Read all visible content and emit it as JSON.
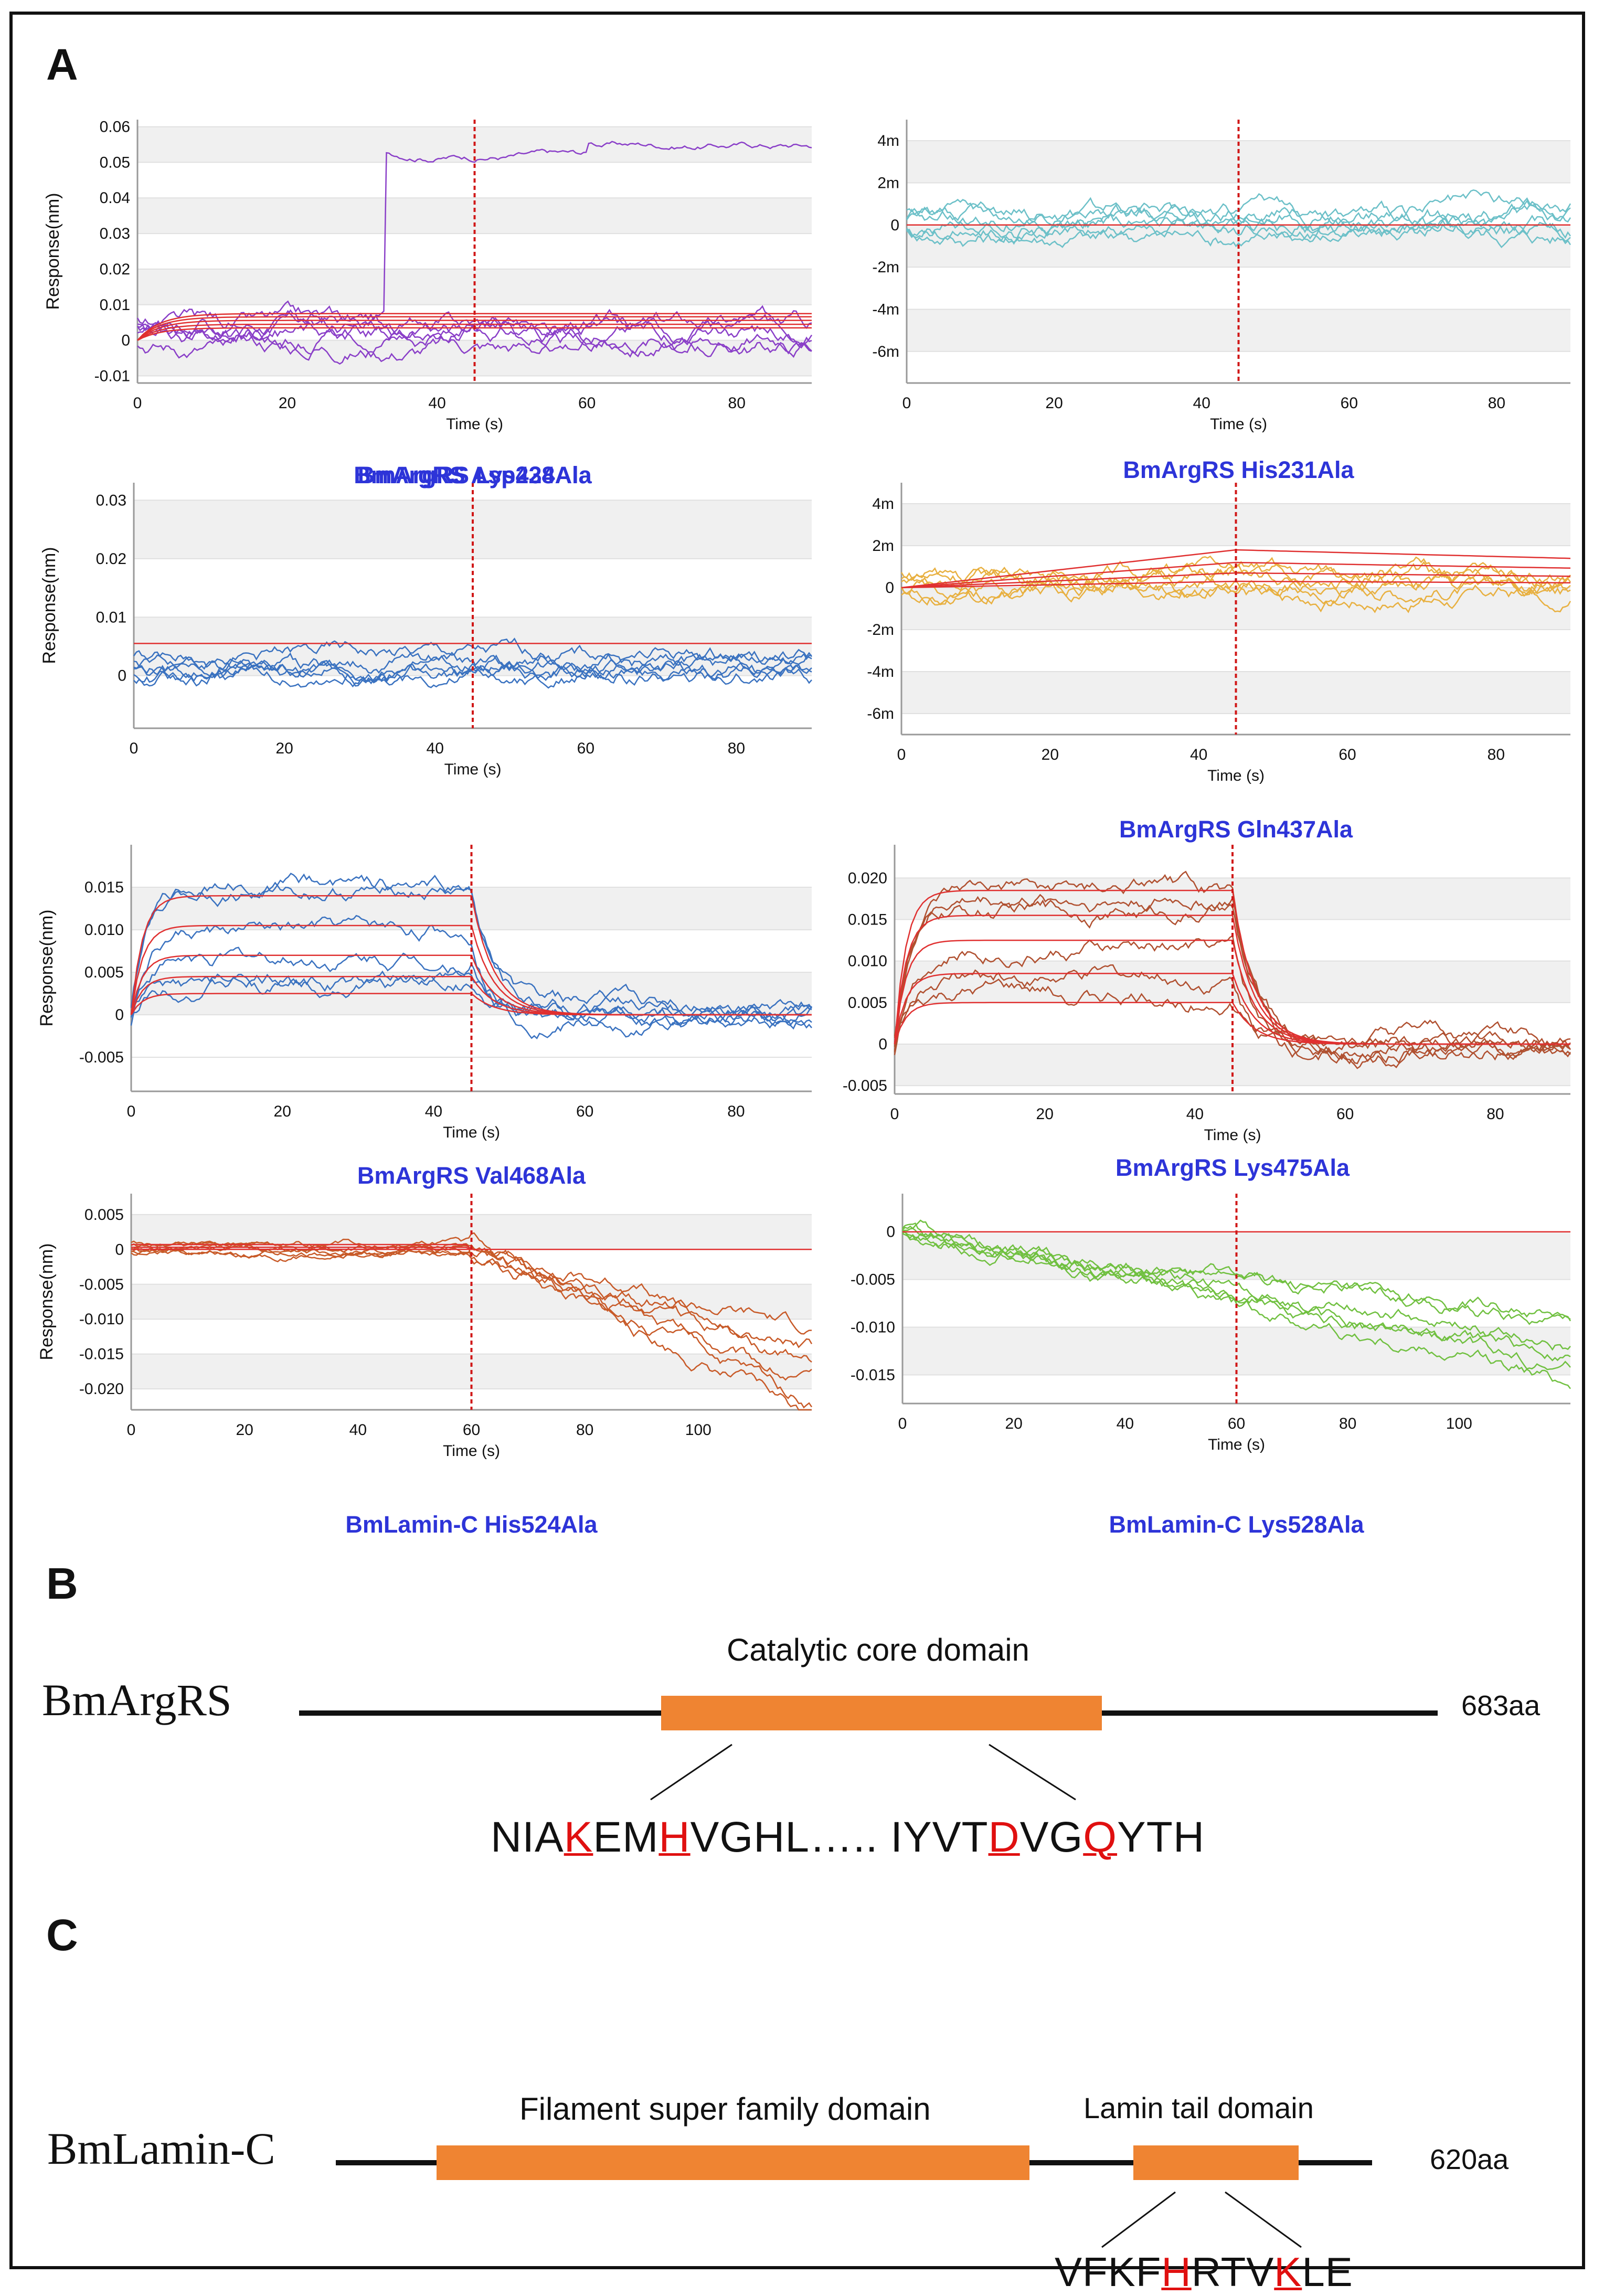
{
  "panels": {
    "a": "A",
    "b": "B",
    "c": "C"
  },
  "axis": {
    "ylabel": "Response(nm)",
    "xlabel": "Time (s)"
  },
  "chart_data": [
    {
      "type": "line",
      "caption": "BmArgRS Lys228Ala",
      "xlim": [
        0,
        90
      ],
      "xticks": [
        0,
        20,
        40,
        60,
        80
      ],
      "ylim": [
        -0.012,
        0.062
      ],
      "yticks": [
        "0.06",
        "0.05",
        "0.04",
        "0.03",
        "0.02",
        "0.01",
        "0",
        "-0.01"
      ],
      "ytick_values": [
        0.06,
        0.05,
        0.04,
        0.03,
        0.02,
        0.01,
        0,
        -0.01
      ],
      "show_ylabel": true,
      "dissociation_start": 45,
      "trace_color": "#8a3fc8",
      "fit_color": "#e03030",
      "fit_levels": [
        0.0075,
        0.0066,
        0.0056,
        0.0045,
        0.0035
      ]
    },
    {
      "type": "line",
      "caption": "BmArgRS His231Ala",
      "xlim": [
        0,
        90
      ],
      "xticks": [
        0,
        20,
        40,
        60,
        80
      ],
      "ylim": [
        -7.5,
        5
      ],
      "yticks": [
        "4m",
        "2m",
        "0",
        "-2m",
        "-4m",
        "-6m"
      ],
      "ytick_values": [
        4,
        2,
        0,
        -2,
        -4,
        -6
      ],
      "show_ylabel": false,
      "dissociation_start": 45,
      "trace_color": "#6cc0c8",
      "fit_color": "#e03030",
      "fit_levels": [
        0
      ]
    },
    {
      "type": "line",
      "caption": "BmArgRS Asp434Ala",
      "xlim": [
        0,
        90
      ],
      "xticks": [
        0,
        20,
        40,
        60,
        80
      ],
      "ylim": [
        -0.009,
        0.033
      ],
      "yticks": [
        "0.03",
        "0.02",
        "0.01",
        "0"
      ],
      "ytick_values": [
        0.03,
        0.02,
        0.01,
        0
      ],
      "show_ylabel": true,
      "dissociation_start": 45,
      "trace_color": "#3a72c0",
      "fit_color": "#e03030",
      "fit_levels": [
        0.0055
      ]
    },
    {
      "type": "line",
      "caption": "BmArgRS Gln437Ala",
      "xlim": [
        0,
        90
      ],
      "xticks": [
        0,
        20,
        40,
        60,
        80
      ],
      "ylim": [
        -7,
        5
      ],
      "yticks": [
        "4m",
        "2m",
        "0",
        "-2m",
        "-4m",
        "-6m"
      ],
      "ytick_values": [
        4,
        2,
        0,
        -2,
        -4,
        -6
      ],
      "show_ylabel": false,
      "dissociation_start": 45,
      "trace_color": "#e8b040",
      "fit_color": "#e03030",
      "fit_levels": [
        1.8,
        1.2,
        0.7,
        0.3
      ]
    },
    {
      "type": "line",
      "caption": "BmArgRS Val468Ala",
      "xlim": [
        0,
        90
      ],
      "xticks": [
        0,
        20,
        40,
        60,
        80
      ],
      "ylim": [
        -0.009,
        0.02
      ],
      "yticks": [
        "0.015",
        "0.010",
        "0.005",
        "0",
        "-0.005"
      ],
      "ytick_values": [
        0.015,
        0.01,
        0.005,
        0,
        -0.005
      ],
      "show_ylabel": true,
      "dissociation_start": 45,
      "trace_color": "#3a72c0",
      "fit_color": "#e03030",
      "fit_levels": [
        0.014,
        0.0105,
        0.007,
        0.0045,
        0.0025
      ]
    },
    {
      "type": "line",
      "caption": "BmArgRS Lys475Ala",
      "xlim": [
        0,
        90
      ],
      "xticks": [
        0,
        20,
        40,
        60,
        80
      ],
      "ylim": [
        -0.006,
        0.024
      ],
      "yticks": [
        "0.020",
        "0.015",
        "0.010",
        "0.005",
        "0",
        "-0.005"
      ],
      "ytick_values": [
        0.02,
        0.015,
        0.01,
        0.005,
        0,
        -0.005
      ],
      "show_ylabel": false,
      "dissociation_start": 45,
      "trace_color": "#b05030",
      "fit_color": "#e03030",
      "fit_levels": [
        0.0185,
        0.0155,
        0.0125,
        0.0085,
        0.005
      ]
    },
    {
      "type": "line",
      "caption": "BmLamin-C His524Ala",
      "xlim": [
        0,
        120
      ],
      "xticks": [
        0,
        20,
        40,
        60,
        80,
        100
      ],
      "ylim": [
        -0.023,
        0.008
      ],
      "yticks": [
        "0.005",
        "0",
        "-0.005",
        "-0.010",
        "-0.015",
        "-0.020"
      ],
      "ytick_values": [
        0.005,
        0,
        -0.005,
        -0.01,
        -0.015,
        -0.02
      ],
      "show_ylabel": true,
      "dissociation_start": 60,
      "trace_color": "#c85a28",
      "fit_color": "#e03030",
      "fit_levels": [
        0.0007,
        0.0003,
        0
      ]
    },
    {
      "type": "line",
      "caption": "BmLamin-C Lys528Ala",
      "xlim": [
        0,
        120
      ],
      "xticks": [
        0,
        20,
        40,
        60,
        80,
        100
      ],
      "ylim": [
        -0.018,
        0.004
      ],
      "yticks": [
        "0",
        "-0.005",
        "-0.010",
        "-0.015"
      ],
      "ytick_values": [
        0,
        -0.005,
        -0.01,
        -0.015
      ],
      "show_ylabel": false,
      "dissociation_start": 60,
      "trace_color": "#70c040",
      "fit_color": "#e03030",
      "fit_levels": [
        0
      ]
    }
  ],
  "domains": {
    "argrs": {
      "name": "BmArgRS",
      "length": "683aa",
      "core_label": "Catalytic core domain",
      "seq": [
        "NIA",
        "K",
        "EM",
        "H",
        "VGHL….. IYVT",
        "D",
        "VG",
        "Q",
        "YTH"
      ]
    },
    "lamin": {
      "name": "BmLamin-C",
      "length": "620aa",
      "filament_label": "Filament super family domain",
      "tail_label": "Lamin tail domain",
      "seq": [
        "VFKF",
        "H",
        "RTV",
        "K",
        "LE"
      ]
    }
  },
  "colors": {
    "domain_box": "#ef8432",
    "mutation": "#e01010",
    "caption": "#2d34d8"
  }
}
